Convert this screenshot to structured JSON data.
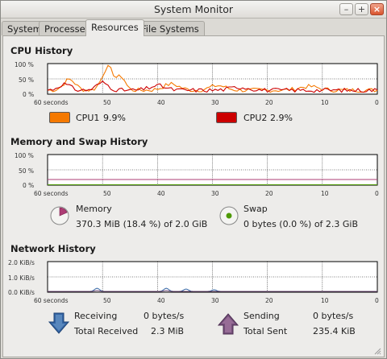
{
  "window": {
    "title": "System Monitor",
    "buttons": [
      "minimize",
      "maximize",
      "close"
    ]
  },
  "tabs": [
    {
      "label": "System"
    },
    {
      "label": "Processes"
    },
    {
      "label": "Resources",
      "active": true
    },
    {
      "label": "File Systems"
    }
  ],
  "cpu": {
    "title": "CPU History",
    "y_ticks": [
      "100 %",
      "50 %",
      "0 %"
    ],
    "x_ticks": [
      "60 seconds",
      "50",
      "40",
      "30",
      "20",
      "10",
      "0"
    ],
    "cpu1_label": "CPU1",
    "cpu1_value": "9.9%",
    "cpu1_color": "#f57900",
    "cpu2_label": "CPU2",
    "cpu2_value": "2.9%",
    "cpu2_color": "#cc0000"
  },
  "memory": {
    "title": "Memory and Swap History",
    "y_ticks": [
      "100 %",
      "50 %",
      "0 %"
    ],
    "x_ticks": [
      "60 seconds",
      "50",
      "40",
      "30",
      "20",
      "10",
      "0"
    ],
    "memory_label": "Memory",
    "memory_value": "370.3 MiB (18.4 %) of 2.0 GiB",
    "memory_fraction": 0.184,
    "memory_color": "#ad3c74",
    "swap_label": "Swap",
    "swap_value": "0 bytes (0.0 %) of 2.3 GiB",
    "swap_fraction": 0.0,
    "swap_color": "#4e9a06"
  },
  "network": {
    "title": "Network History",
    "y_ticks": [
      "2.0 KiB/s",
      "1.0 KiB/s",
      "0.0 KiB/s"
    ],
    "x_ticks": [
      "60 seconds",
      "50",
      "40",
      "30",
      "20",
      "10",
      "0"
    ],
    "receiving_label": "Receiving",
    "receiving_rate": "0 bytes/s",
    "total_received_label": "Total Received",
    "total_received": "2.3 MiB",
    "receiving_color": "#3465a4",
    "sending_label": "Sending",
    "sending_rate": "0 bytes/s",
    "total_sent_label": "Total Sent",
    "total_sent": "235.4 KiB",
    "sending_color": "#75507b"
  }
}
